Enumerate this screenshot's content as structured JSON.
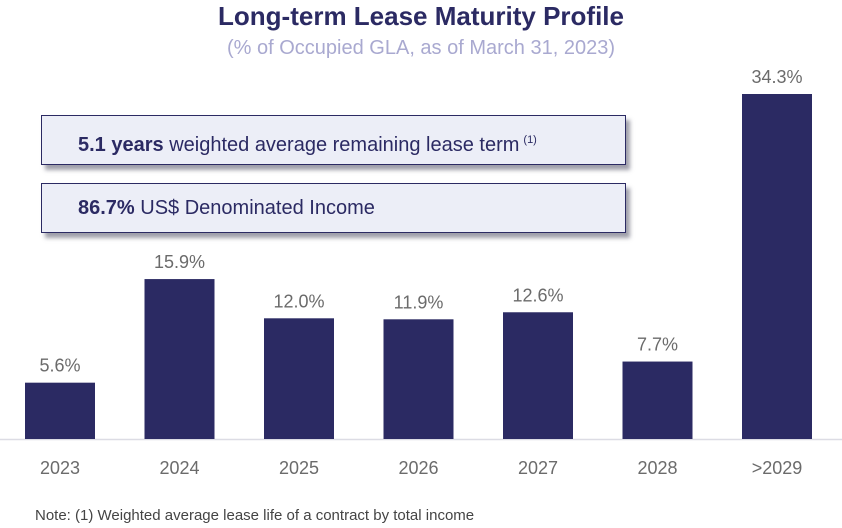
{
  "chart_data": {
    "type": "bar",
    "title": "Long-term Lease Maturity Profile",
    "subtitle": "(% of Occupied GLA, as of March 31, 2023)",
    "categories": [
      "2023",
      "2024",
      "2025",
      "2026",
      "2027",
      "2028",
      ">2029"
    ],
    "values": [
      5.6,
      15.9,
      12.0,
      11.9,
      12.6,
      7.7,
      34.3
    ],
    "data_labels": [
      "5.6%",
      "15.9%",
      "12.0%",
      "11.9%",
      "12.6%",
      "7.7%",
      "34.3%"
    ],
    "ylim": [
      0,
      35
    ],
    "grid": false,
    "bar_color": "#2b2a63",
    "callouts": [
      {
        "bold": "5.1 years",
        "text": " weighted average remaining lease term",
        "sup": "(1)"
      },
      {
        "bold": "86.7%",
        "text": " US$ Denominated Income"
      }
    ],
    "note": "Note: (1) Weighted average lease life of a contract by total income"
  }
}
